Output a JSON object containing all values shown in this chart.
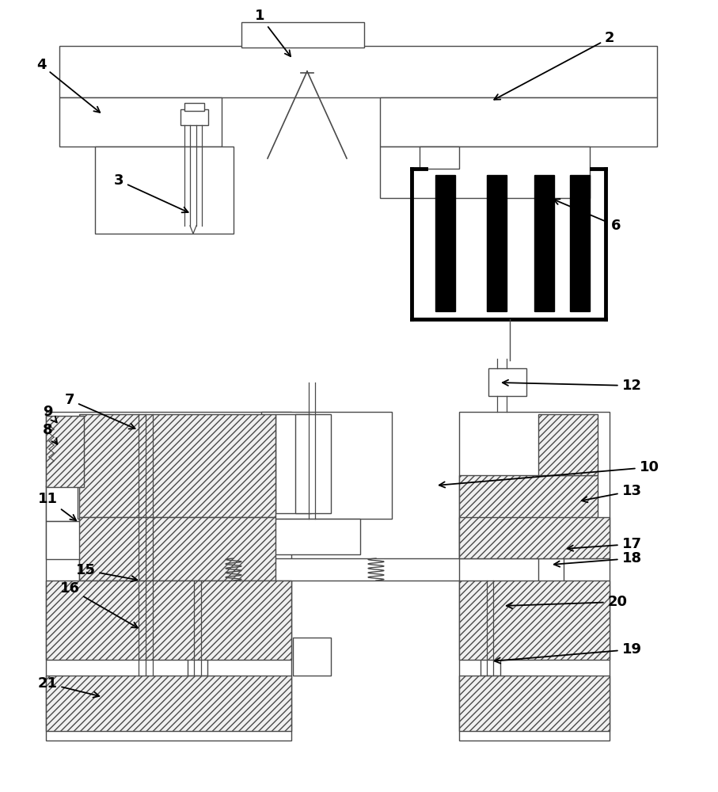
{
  "bg": "#ffffff",
  "lc": "#4a4a4a",
  "lw": 1.0,
  "fs": 13,
  "figsize": [
    9.07,
    10.0
  ],
  "dpi": 100
}
